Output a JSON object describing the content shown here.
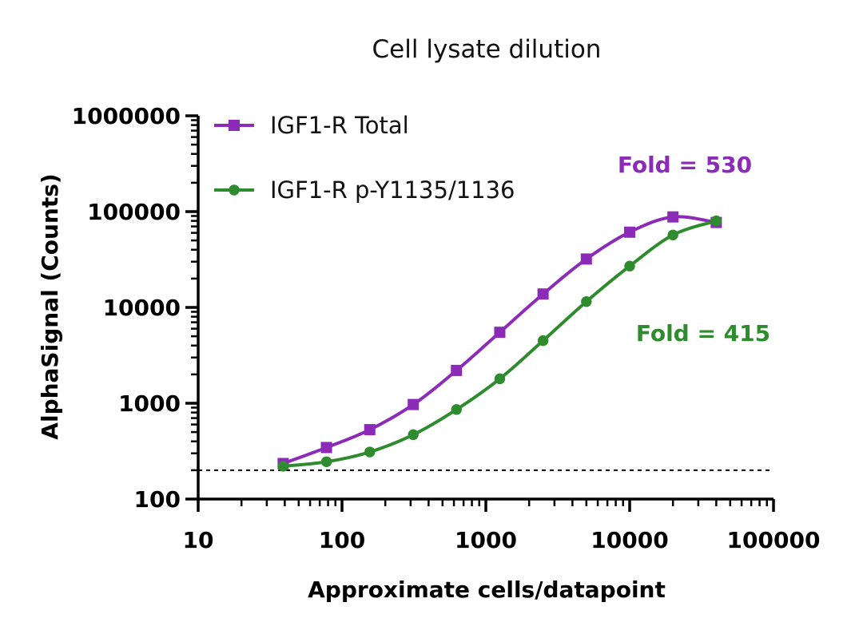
{
  "chart_data": {
    "type": "scatter",
    "title": "Cell lysate dilution",
    "xlabel": "Approximate cells/datapoint",
    "ylabel": "AlphaSignal (Counts)",
    "x_scale": "log",
    "y_scale": "log",
    "xlim": [
      10,
      100000
    ],
    "ylim": [
      100,
      1000000
    ],
    "x_ticks": [
      "10",
      "100",
      "1000",
      "10000",
      "100000"
    ],
    "y_ticks": [
      "100",
      "1000",
      "10000",
      "100000",
      "1000000"
    ],
    "legend_position": "top-left",
    "grid": false,
    "background_line": {
      "y": 200,
      "style": "dashed"
    },
    "series": [
      {
        "name": "IGF1-R Total",
        "color": "#8B2BB8",
        "marker": "square",
        "x": [
          39,
          78,
          156,
          313,
          625,
          1250,
          2500,
          5000,
          10000,
          20000,
          40000
        ],
        "y": [
          235,
          345,
          530,
          970,
          2200,
          5500,
          13800,
          32000,
          61000,
          88000,
          77000
        ],
        "fold_label": "Fold = 530"
      },
      {
        "name": "IGF1-R p-Y1135/1136",
        "color": "#2E8B2E",
        "marker": "circle",
        "x": [
          39,
          78,
          156,
          313,
          625,
          1250,
          2500,
          5000,
          10000,
          20000,
          40000
        ],
        "y": [
          220,
          245,
          310,
          470,
          860,
          1800,
          4500,
          11500,
          27000,
          57000,
          80000
        ],
        "fold_label": "Fold = 415"
      }
    ]
  }
}
